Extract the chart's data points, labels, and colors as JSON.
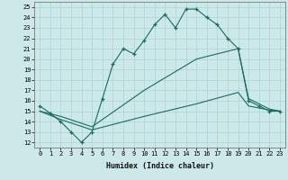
{
  "title": "",
  "xlabel": "Humidex (Indice chaleur)",
  "bg_color": "#cce8e8",
  "line_color": "#1a6b5e",
  "grid_color": "#aad4d4",
  "xlim": [
    -0.5,
    23.5
  ],
  "ylim": [
    11.5,
    25.5
  ],
  "xticks": [
    0,
    1,
    2,
    3,
    4,
    5,
    6,
    7,
    8,
    9,
    10,
    11,
    12,
    13,
    14,
    15,
    16,
    17,
    18,
    19,
    20,
    21,
    22,
    23
  ],
  "yticks": [
    12,
    13,
    14,
    15,
    16,
    17,
    18,
    19,
    20,
    21,
    22,
    23,
    24,
    25
  ],
  "line1_x": [
    0,
    1,
    2,
    3,
    4,
    5,
    6,
    7,
    8,
    9,
    10,
    11,
    12,
    13,
    14,
    15,
    16,
    17,
    18,
    19,
    20,
    21,
    22,
    23
  ],
  "line1_y": [
    15.5,
    14.8,
    14.0,
    13.0,
    12.0,
    13.0,
    16.2,
    19.5,
    21.0,
    20.5,
    21.8,
    23.3,
    24.3,
    23.0,
    24.8,
    24.8,
    24.0,
    23.3,
    22.0,
    21.0,
    16.0,
    15.5,
    15.0,
    15.0
  ],
  "line2_x": [
    0,
    2,
    5,
    10,
    15,
    19,
    20,
    22,
    23
  ],
  "line2_y": [
    15.0,
    14.5,
    13.5,
    17.0,
    20.0,
    21.0,
    16.2,
    15.2,
    15.0
  ],
  "line3_x": [
    0,
    2,
    5,
    10,
    15,
    19,
    20,
    22,
    23
  ],
  "line3_y": [
    15.0,
    14.2,
    13.2,
    14.5,
    15.7,
    16.8,
    15.5,
    15.1,
    15.0
  ]
}
